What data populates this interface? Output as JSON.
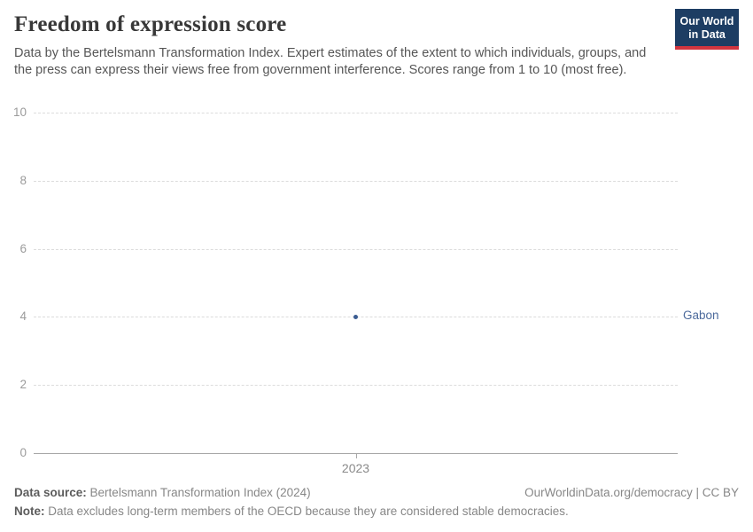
{
  "header": {
    "title": "Freedom of expression score",
    "subtitle": "Data by the Bertelsmann Transformation Index. Expert estimates of the extent to which individuals, groups, and the press can express their views free from government interference. Scores range from 1 to 10 (most free).",
    "logo": {
      "line1": "Our World",
      "line2": "in Data"
    }
  },
  "chart_data": {
    "type": "scatter",
    "title": "Freedom of expression score",
    "x": [
      2023
    ],
    "series": [
      {
        "name": "Gabon",
        "values": [
          4
        ]
      }
    ],
    "xlabel": "",
    "ylabel": "",
    "ylim": [
      0,
      10
    ],
    "yticks": [
      0,
      2,
      4,
      6,
      8,
      10
    ],
    "xticks": [
      "2023"
    ],
    "grid": "horizontal-dashed",
    "legend_position": "entity-label-right-of-plot"
  },
  "footer": {
    "source_label": "Data source:",
    "source_value": "Bertelsmann Transformation Index (2024)",
    "rights": "OurWorldinData.org/democracy | CC BY",
    "note_label": "Note:",
    "note_value": "Data excludes long-term members of the OECD because they are considered stable democracies."
  },
  "colors": {
    "point": "#3b5d92",
    "entity_label": "#4c6a9c",
    "logo_navy": "#1d3d63",
    "logo_red": "#d1353f",
    "gridline": "#dcdcdc",
    "axis": "#a8a8a8"
  }
}
